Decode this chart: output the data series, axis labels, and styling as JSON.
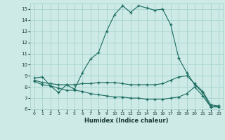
{
  "xlabel": "Humidex (Indice chaleur)",
  "bg_color": "#cdeae7",
  "grid_color": "#a8d5d0",
  "line_color": "#1a6b5e",
  "xlim": [
    -0.5,
    23.5
  ],
  "ylim": [
    6,
    15.5
  ],
  "xticks": [
    0,
    1,
    2,
    3,
    4,
    5,
    6,
    7,
    8,
    9,
    10,
    11,
    12,
    13,
    14,
    15,
    16,
    17,
    18,
    19,
    20,
    21,
    22,
    23
  ],
  "yticks": [
    6,
    7,
    8,
    9,
    10,
    11,
    12,
    13,
    14,
    15
  ],
  "line1_x": [
    0,
    1,
    2,
    3,
    4,
    5,
    6,
    7,
    8,
    9,
    10,
    11,
    12,
    13,
    14,
    15,
    16,
    17,
    18,
    19,
    20,
    21,
    22,
    23
  ],
  "line1_y": [
    8.8,
    8.9,
    8.1,
    7.5,
    8.2,
    7.8,
    9.3,
    10.5,
    11.1,
    13.0,
    14.5,
    15.3,
    14.7,
    15.3,
    15.1,
    14.9,
    15.0,
    13.6,
    10.6,
    9.3,
    8.2,
    7.5,
    6.2,
    6.3
  ],
  "line2_x": [
    0,
    1,
    2,
    3,
    4,
    5,
    6,
    7,
    8,
    9,
    10,
    11,
    12,
    13,
    14,
    15,
    16,
    17,
    18,
    19,
    20,
    21,
    22,
    23
  ],
  "line2_y": [
    8.6,
    8.4,
    8.3,
    8.2,
    8.2,
    8.2,
    8.3,
    8.3,
    8.4,
    8.4,
    8.4,
    8.3,
    8.2,
    8.2,
    8.2,
    8.2,
    8.3,
    8.6,
    8.9,
    9.0,
    8.3,
    7.6,
    6.4,
    6.3
  ],
  "line3_x": [
    0,
    1,
    2,
    3,
    4,
    5,
    6,
    7,
    8,
    9,
    10,
    11,
    12,
    13,
    14,
    15,
    16,
    17,
    18,
    19,
    20,
    21,
    22,
    23
  ],
  "line3_y": [
    8.5,
    8.2,
    8.1,
    7.9,
    7.7,
    7.7,
    7.6,
    7.4,
    7.3,
    7.2,
    7.1,
    7.1,
    7.0,
    7.0,
    6.9,
    6.9,
    6.9,
    7.0,
    7.1,
    7.4,
    8.0,
    7.2,
    6.2,
    6.2
  ]
}
